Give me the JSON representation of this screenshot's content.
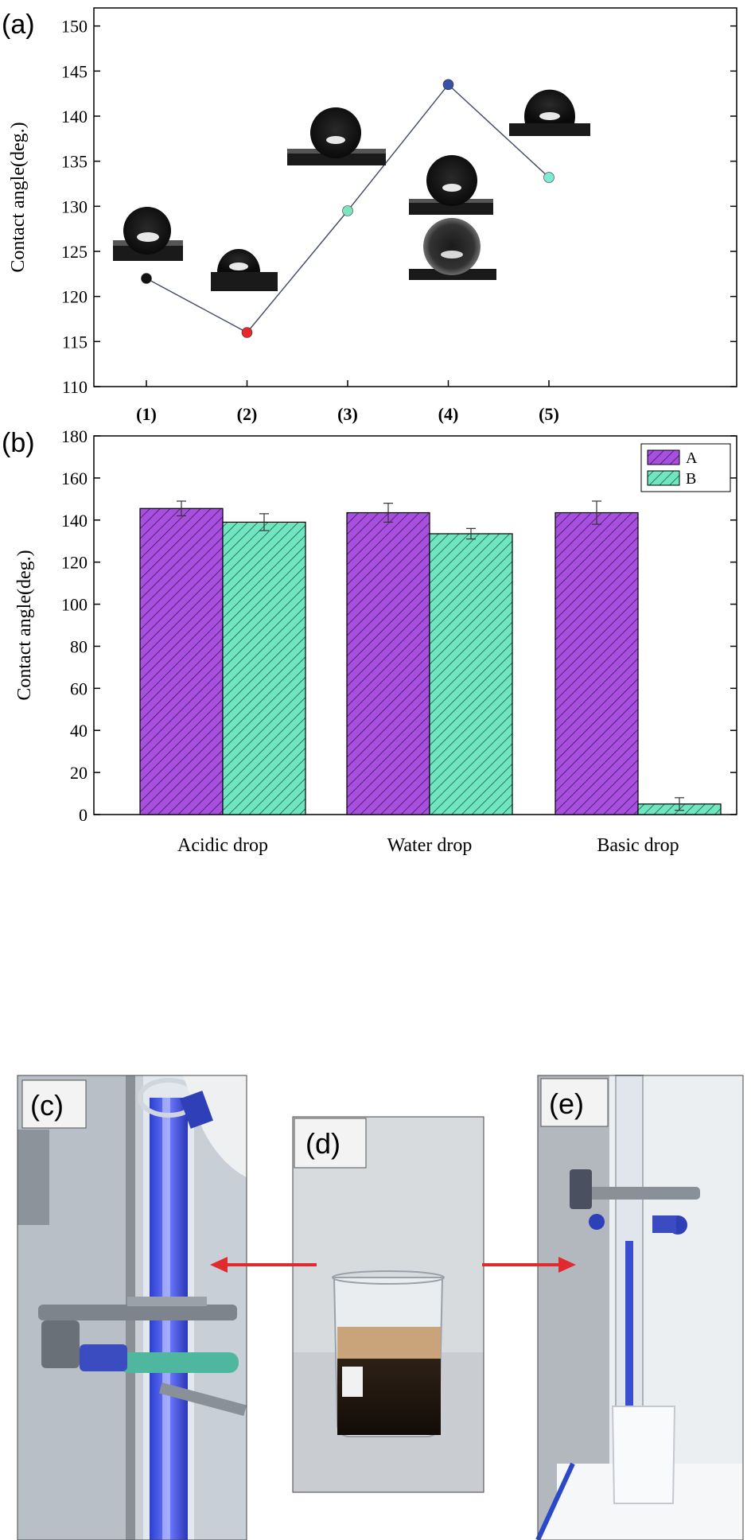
{
  "panels": {
    "a": "(a)",
    "b": "(b)",
    "c": "(c)",
    "d": "(d)",
    "e": "(e)"
  },
  "chart_data": [
    {
      "type": "line",
      "panel": "a",
      "ylabel": "Contact angle(deg.)",
      "xlabel": "",
      "categories": [
        "(1)",
        "(2)",
        "(3)",
        "(4)",
        "(5)"
      ],
      "values": [
        122,
        116,
        129.5,
        143.5,
        133.2
      ],
      "point_colors": [
        "#111111",
        "#e8282d",
        "#7fe3c0",
        "#3a4fa8",
        "#7fe9d4"
      ],
      "ylim": [
        110,
        152
      ],
      "yticks": [
        110,
        115,
        120,
        125,
        130,
        135,
        140,
        145,
        150
      ]
    },
    {
      "type": "bar",
      "panel": "b",
      "ylabel": "Contact angle(deg.)",
      "categories": [
        "Acidic drop",
        "Water drop",
        "Basic drop"
      ],
      "series": [
        {
          "name": "A",
          "values": [
            145.5,
            143.5,
            143.5
          ],
          "errors": [
            3.5,
            4.5,
            5.5
          ],
          "color": "#a84fe0"
        },
        {
          "name": "B",
          "values": [
            139,
            133.5,
            5
          ],
          "errors": [
            4,
            2.5,
            3
          ],
          "color": "#6fe6c0"
        }
      ],
      "ylim": [
        0,
        180
      ],
      "yticks": [
        0,
        20,
        40,
        60,
        80,
        100,
        120,
        140,
        160,
        180
      ],
      "legend_position": "top-right"
    }
  ]
}
